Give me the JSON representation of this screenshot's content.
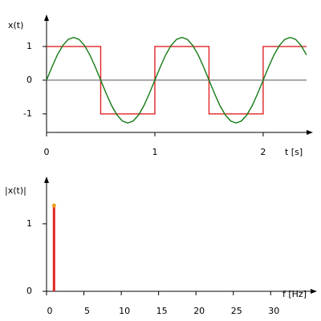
{
  "chart_data": [
    {
      "type": "line",
      "ylabel": "x(t)",
      "xlabel": "t [s]",
      "xlim": [
        0,
        2.46
      ],
      "ylim": [
        -1.55,
        1.95
      ],
      "xticks": [
        0,
        1,
        2
      ],
      "yticks": [
        -1,
        0,
        1
      ],
      "series": [
        {
          "color": "#e02424",
          "x": [
            0,
            0.5,
            0.5,
            1,
            1,
            1.5,
            1.5,
            2,
            2,
            2.4
          ],
          "values": [
            1,
            1,
            -1,
            -1,
            1,
            1,
            -1,
            -1,
            1,
            1
          ]
        },
        {
          "color": "#137a13",
          "x": [
            0,
            0.05,
            0.1,
            0.15,
            0.2,
            0.25,
            0.3,
            0.35,
            0.4,
            0.45,
            0.5,
            0.55,
            0.6,
            0.65,
            0.7,
            0.75,
            0.8,
            0.85,
            0.9,
            0.95,
            1,
            1.05,
            1.1,
            1.15,
            1.2,
            1.25,
            1.3,
            1.35,
            1.4,
            1.45,
            1.5,
            1.55,
            1.6,
            1.65,
            1.7,
            1.75,
            1.8,
            1.85,
            1.9,
            1.95,
            2,
            2.05,
            2.1,
            2.15,
            2.2,
            2.25,
            2.3,
            2.35,
            2.4
          ],
          "values": [
            0,
            0.39,
            0.75,
            1.03,
            1.21,
            1.27,
            1.21,
            1.03,
            0.75,
            0.39,
            0,
            -0.39,
            -0.75,
            -1.03,
            -1.21,
            -1.27,
            -1.21,
            -1.03,
            -0.75,
            -0.39,
            0,
            0.39,
            0.75,
            1.03,
            1.21,
            1.27,
            1.21,
            1.03,
            0.75,
            0.39,
            0,
            -0.39,
            -0.75,
            -1.03,
            -1.21,
            -1.27,
            -1.21,
            -1.03,
            -0.75,
            -0.39,
            0,
            0.39,
            0.75,
            1.03,
            1.21,
            1.27,
            1.21,
            1.03,
            0.75
          ]
        }
      ]
    },
    {
      "type": "stem",
      "ylabel": "|x(t)|",
      "xlabel": "f [Hz]",
      "xlim": [
        0,
        36.2
      ],
      "ylim": [
        0,
        1.7
      ],
      "xticks": [
        0,
        5,
        10,
        15,
        20,
        25,
        30
      ],
      "yticks": [
        0,
        1
      ],
      "x": [
        1
      ],
      "values": [
        1.27
      ],
      "color": "#e02424",
      "marker_color": "#f0a020"
    }
  ]
}
